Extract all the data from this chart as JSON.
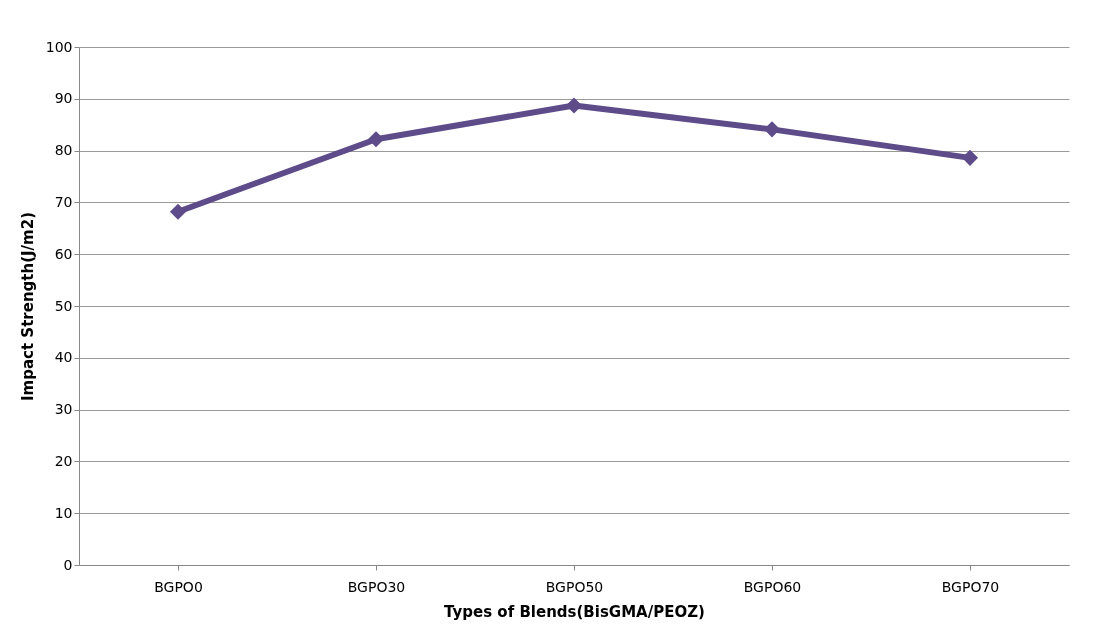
{
  "chart_data": {
    "type": "line",
    "xlabel": "Types of Blends(BisGMA/PEOZ)",
    "ylabel": "Impact Strength(J/m2)",
    "categories": [
      "BGPO0",
      "BGPO30",
      "BGPO50",
      "BGPO60",
      "BGPO70"
    ],
    "series": [
      {
        "color": "#5e4b8a",
        "values": [
          68.2,
          82.2,
          88.7,
          84.1,
          78.6
        ]
      }
    ],
    "ylim": [
      0,
      100
    ],
    "yticks": [
      0,
      10,
      20,
      30,
      40,
      50,
      60,
      70,
      80,
      90,
      100
    ],
    "grid": "y",
    "marker": "diamond",
    "line_style": "solid"
  }
}
